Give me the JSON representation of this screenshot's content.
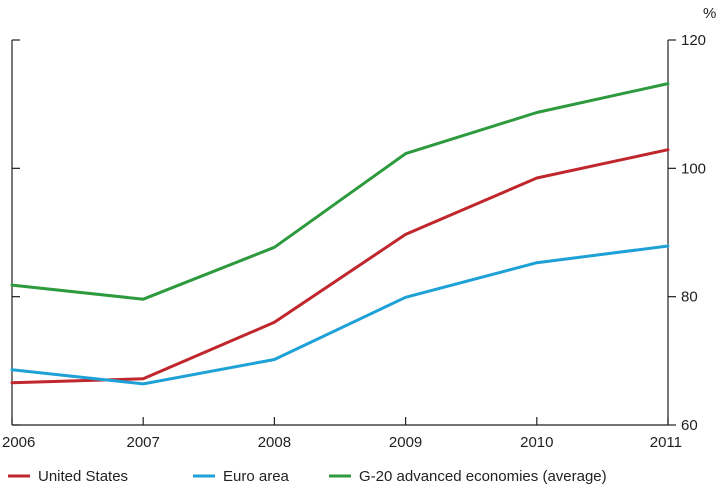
{
  "chart_data": {
    "type": "line",
    "y_unit": "%",
    "x": [
      "2006",
      "2007",
      "2008",
      "2009",
      "2010",
      "2011"
    ],
    "ylim": [
      60,
      120
    ],
    "yticks": [
      60,
      80,
      100,
      120
    ],
    "grid": false,
    "legend_position": "bottom",
    "series": [
      {
        "name": "United States",
        "color": "#c0272d",
        "values": [
          66.6,
          67.2,
          76.0,
          89.7,
          98.5,
          102.9
        ]
      },
      {
        "name": "Euro area",
        "color": "#1ea1d7",
        "values": [
          68.6,
          66.4,
          70.2,
          79.9,
          85.3,
          87.9
        ]
      },
      {
        "name": "G-20 advanced economies (average)",
        "color": "#2e9a3e",
        "values": [
          81.8,
          79.6,
          87.7,
          102.3,
          108.7,
          113.2
        ]
      }
    ]
  }
}
